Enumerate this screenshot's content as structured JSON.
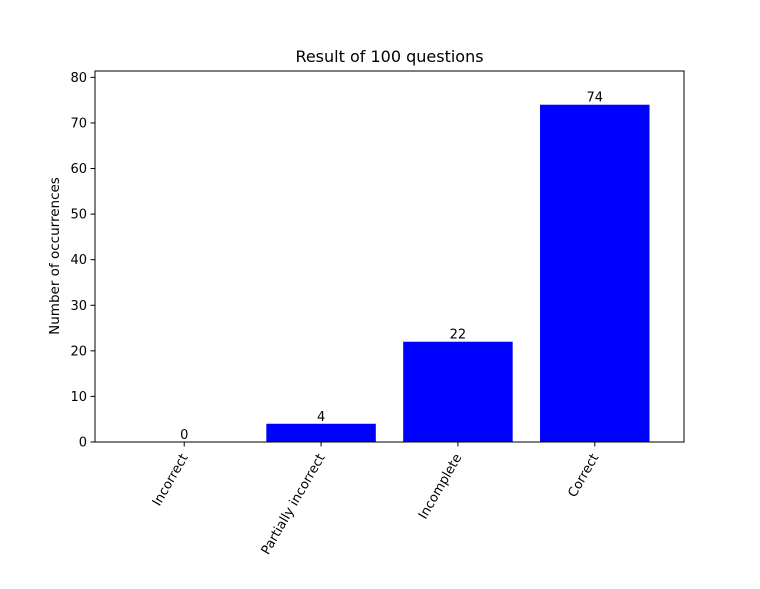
{
  "chart_data": {
    "type": "bar",
    "title": "Result of 100 questions",
    "xlabel": "",
    "ylabel": "Number of occurrences",
    "categories": [
      "Incorrect",
      "Partially incorrect",
      "Incomplete",
      "Correct"
    ],
    "values": [
      0,
      4,
      22,
      74
    ],
    "data_labels": [
      "0",
      "4",
      "22",
      "74"
    ],
    "ylim": [
      0,
      81.4
    ],
    "yticks": [
      0,
      10,
      20,
      30,
      40,
      50,
      60,
      70,
      80
    ],
    "bar_color": "#0000ff",
    "grid": false,
    "legend": "none"
  }
}
